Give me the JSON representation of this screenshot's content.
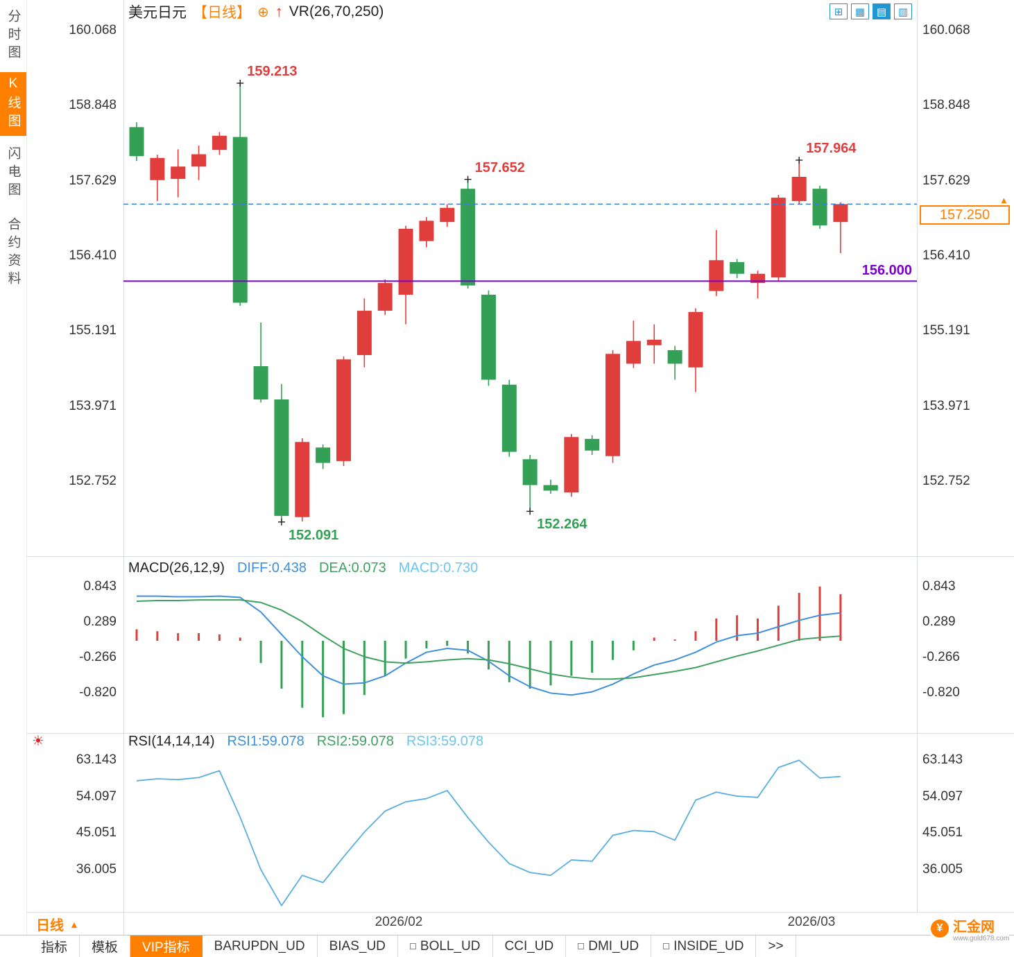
{
  "sidebar": {
    "items": [
      {
        "label": "分时图",
        "active": false
      },
      {
        "label": "K线图",
        "active": true
      },
      {
        "label": "闪电图",
        "active": false
      },
      {
        "label": "合约资料",
        "active": false
      }
    ]
  },
  "header": {
    "symbol": "美元日元",
    "period_tag": "【日线】",
    "plus_icon": "⊕",
    "arrow_icon": "↑",
    "indicator": "VR(26,70,250)"
  },
  "toolbar": {
    "icons": [
      {
        "name": "grid-layout-icon",
        "glyph": "⊞",
        "active": false
      },
      {
        "name": "multi-grid-icon",
        "glyph": "▦",
        "active": false
      },
      {
        "name": "kline-panel-icon",
        "glyph": "▤",
        "active": true
      },
      {
        "name": "split-window-icon",
        "glyph": "▥",
        "active": false
      }
    ]
  },
  "macd_panel": {
    "title": "MACD(26,12,9)",
    "diff_label": "DIFF:0.438",
    "dea_label": "DEA:0.073",
    "macd_label": "MACD:0.730"
  },
  "rsi_panel": {
    "title": "RSI(14,14,14)",
    "rsi1_label": "RSI1:59.078",
    "rsi2_label": "RSI2:59.078",
    "rsi3_label": "RSI3:59.078"
  },
  "price_labels": {
    "last_price": "157.250",
    "purple_level": "156.000",
    "tag_arrow": "▲"
  },
  "period_selector": {
    "label": "日线",
    "arrow": "▲"
  },
  "icons": {
    "sun": "☀"
  },
  "bottom_tabs": {
    "items": [
      "指标",
      "模板",
      "VIP指标",
      "BARUPDN_UD",
      "BIAS_UD",
      "BOLL_UD",
      "CCI_UD",
      "DMI_UD",
      "INSIDE_UD",
      ">>"
    ],
    "active": "VIP指标"
  },
  "watermark": {
    "name": "汇金网",
    "url": "www.gold678.com",
    "logo_glyph": "¥"
  },
  "colors": {
    "up": "#e03d3d",
    "down": "#33a055",
    "orange": "#ff8000",
    "purple": "#7c00cc",
    "dashed_blue": "#3a7fd5",
    "diff_blue": "#3f8fdb",
    "dea_green": "#3fa05f",
    "macd_cyan": "#6cc5f0",
    "rsi_blue": "#58aede",
    "grid": "#d9dee4"
  },
  "chart_data": {
    "type": "candlestick",
    "title": "美元日元 日线",
    "x_axis_labels": [
      "2026/02",
      "2026/03"
    ],
    "y_axis_labels": [
      "160.068",
      "158.848",
      "157.629",
      "156.410",
      "155.191",
      "153.971",
      "152.752"
    ],
    "ylim": [
      152.752,
      160.068
    ],
    "candles": [
      [
        158.5,
        158.58,
        157.95,
        158.03
      ],
      [
        157.64,
        158.05,
        157.3,
        158.0
      ],
      [
        157.66,
        158.14,
        157.36,
        157.86
      ],
      [
        157.86,
        158.2,
        157.64,
        158.06
      ],
      [
        158.13,
        158.42,
        158.05,
        158.36
      ],
      [
        158.34,
        159.213,
        155.6,
        155.65
      ],
      [
        154.62,
        155.33,
        154.03,
        154.08
      ],
      [
        154.08,
        154.33,
        152.091,
        152.19
      ],
      [
        152.17,
        153.45,
        152.1,
        153.39
      ],
      [
        153.3,
        153.35,
        152.95,
        153.05
      ],
      [
        153.08,
        154.78,
        153.0,
        154.73
      ],
      [
        154.8,
        155.72,
        154.6,
        155.52
      ],
      [
        155.52,
        156.03,
        155.45,
        155.97
      ],
      [
        155.78,
        156.9,
        155.3,
        156.85
      ],
      [
        156.65,
        157.04,
        156.55,
        156.98
      ],
      [
        156.96,
        157.25,
        156.88,
        157.19
      ],
      [
        157.5,
        157.652,
        155.88,
        155.93
      ],
      [
        155.78,
        155.85,
        154.3,
        154.4
      ],
      [
        154.32,
        154.4,
        153.15,
        153.23
      ],
      [
        153.11,
        153.18,
        152.264,
        152.69
      ],
      [
        152.69,
        152.78,
        152.55,
        152.6
      ],
      [
        152.57,
        153.52,
        152.5,
        153.47
      ],
      [
        153.44,
        153.5,
        153.18,
        153.25
      ],
      [
        153.16,
        154.88,
        153.05,
        154.82
      ],
      [
        154.66,
        155.36,
        154.59,
        155.03
      ],
      [
        154.96,
        155.3,
        154.66,
        155.05
      ],
      [
        154.88,
        154.95,
        154.4,
        154.66
      ],
      [
        154.6,
        155.56,
        154.2,
        155.5
      ],
      [
        155.84,
        156.83,
        155.76,
        156.34
      ],
      [
        156.31,
        156.36,
        156.05,
        156.12
      ],
      [
        155.97,
        156.17,
        155.72,
        156.12
      ],
      [
        156.06,
        157.4,
        156.0,
        157.355
      ],
      [
        157.3,
        157.964,
        157.25,
        157.693
      ],
      [
        157.5,
        157.55,
        156.85,
        156.905
      ],
      [
        156.96,
        157.28,
        156.455,
        157.25
      ]
    ],
    "annotations": [
      {
        "index": 5,
        "side": "high",
        "label": "159.213"
      },
      {
        "index": 7,
        "side": "low",
        "label": "152.091"
      },
      {
        "index": 16,
        "side": "high",
        "label": "157.652"
      },
      {
        "index": 19,
        "side": "low",
        "label": "152.264"
      },
      {
        "index": 32,
        "side": "high",
        "label": "157.964"
      }
    ],
    "reference_lines": {
      "last_price": 157.25,
      "purple_level": 156.0
    },
    "macd": {
      "params": "26,12,9",
      "y_axis_labels": [
        "0.843",
        "0.289",
        "-0.266",
        "-0.820"
      ],
      "hist": [
        0.18,
        0.15,
        0.12,
        0.12,
        0.1,
        0.05,
        -0.35,
        -0.75,
        -1.05,
        -1.2,
        -1.15,
        -0.85,
        -0.55,
        -0.28,
        -0.12,
        -0.08,
        -0.2,
        -0.45,
        -0.65,
        -0.75,
        -0.7,
        -0.55,
        -0.5,
        -0.3,
        -0.15,
        0.05,
        0.02,
        0.15,
        0.35,
        0.4,
        0.35,
        0.55,
        0.75,
        0.85,
        0.73
      ],
      "diff": [
        0.7,
        0.7,
        0.69,
        0.69,
        0.7,
        0.68,
        0.45,
        0.1,
        -0.25,
        -0.55,
        -0.68,
        -0.66,
        -0.55,
        -0.35,
        -0.18,
        -0.12,
        -0.15,
        -0.32,
        -0.55,
        -0.72,
        -0.82,
        -0.85,
        -0.8,
        -0.68,
        -0.52,
        -0.38,
        -0.3,
        -0.18,
        -0.02,
        0.08,
        0.12,
        0.22,
        0.32,
        0.4,
        0.438
      ],
      "dea": [
        0.62,
        0.63,
        0.63,
        0.64,
        0.64,
        0.64,
        0.6,
        0.48,
        0.3,
        0.08,
        -0.12,
        -0.25,
        -0.33,
        -0.35,
        -0.33,
        -0.3,
        -0.28,
        -0.3,
        -0.36,
        -0.44,
        -0.52,
        -0.57,
        -0.6,
        -0.6,
        -0.58,
        -0.53,
        -0.48,
        -0.42,
        -0.33,
        -0.24,
        -0.16,
        -0.07,
        0.02,
        0.05,
        0.073
      ]
    },
    "rsi": {
      "params": "14,14,14",
      "y_axis_labels": [
        "63.143",
        "54.097",
        "45.051",
        "36.005"
      ],
      "values": [
        58.0,
        58.5,
        58.3,
        58.8,
        60.5,
        49.0,
        36.0,
        27.1,
        34.6,
        32.8,
        39.2,
        45.3,
        50.5,
        52.8,
        53.6,
        55.6,
        48.9,
        42.8,
        37.5,
        35.3,
        34.6,
        38.4,
        38.1,
        44.5,
        45.7,
        45.4,
        43.3,
        53.2,
        55.2,
        54.2,
        53.9,
        61.3,
        63.1,
        58.7,
        59.078
      ]
    }
  }
}
